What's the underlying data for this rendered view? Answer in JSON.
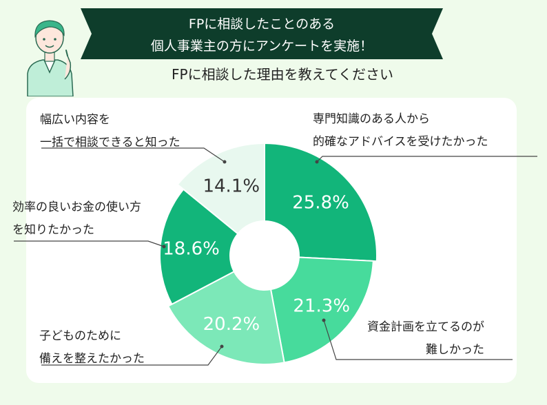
{
  "header": {
    "line1": "FPに相談したことのある",
    "line2": "個人事業主の方にアンケートを実施！"
  },
  "subtitle": "FPに相談した理由を教えてください",
  "colors": {
    "banner": "#0e3d2b",
    "background": "#effbeb",
    "card": "#ffffff"
  },
  "chart_data": {
    "type": "pie",
    "donut": true,
    "slices": [
      {
        "label": "専門知識のある人から的確なアドバイスを受けたかった",
        "lines": [
          "専門知識のある人から",
          "的確なアドバイスを受けたかった"
        ],
        "value": 25.8,
        "value_label": "25.8%",
        "color": "#12b57a",
        "text_color": "#ffffff"
      },
      {
        "label": "資金計画を立てるのが難しかった",
        "lines": [
          "資金計画を立てるのが",
          "難しかった"
        ],
        "value": 21.3,
        "value_label": "21.3%",
        "color": "#47db9c",
        "text_color": "#ffffff"
      },
      {
        "label": "子どものためにに備えを整えたかった",
        "lines": [
          "子どものために",
          "備えを整えたかった"
        ],
        "value": 20.2,
        "value_label": "20.2%",
        "color": "#7ce8b8",
        "text_color": "#ffffff"
      },
      {
        "label": "効率の良いお金の使い方を知りたかった",
        "lines": [
          "効率の良いお金の使い方",
          "を知りたかった"
        ],
        "value": 18.6,
        "value_label": "18.6%",
        "color": "#12b57a",
        "text_color": "#ffffff"
      },
      {
        "label": "幅広い内容を一括で相談できると知った",
        "lines": [
          "幅広い内容を",
          "一括で相談できると知った"
        ],
        "value": 14.1,
        "value_label": "14.1%",
        "color": "#e8f8ef",
        "text_color": "#333333"
      }
    ]
  }
}
